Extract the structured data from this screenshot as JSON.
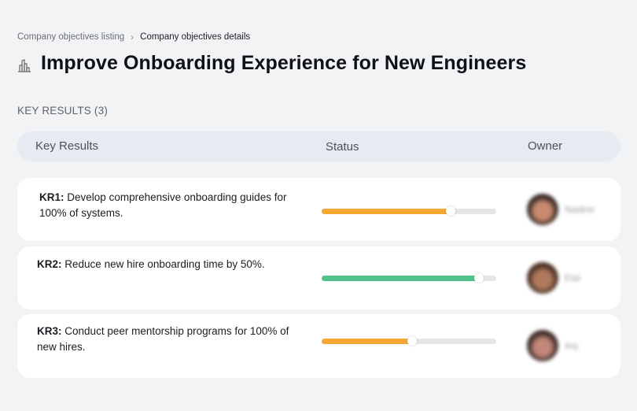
{
  "breadcrumb": {
    "items": [
      {
        "label": "Company objectives listing"
      },
      {
        "label": "Company objectives details"
      }
    ],
    "separator": "›"
  },
  "header": {
    "icon": "buildings-icon",
    "title": "Improve Onboarding Experience for New Engineers"
  },
  "key_results": {
    "section_label": "KEY RESULTS (3)",
    "columns": {
      "key_results": "Key Results",
      "status": "Status",
      "owner": "Owner"
    },
    "rows": [
      {
        "id": "KR1:",
        "text": "Develop comprehensive onboarding guides for 100% of systems.",
        "progress": 74,
        "progress_color": "#f5a733",
        "owner": {
          "name": "Nadine",
          "avatar_color_a": "#3a2a26",
          "avatar_color_b": "#c98a70"
        }
      },
      {
        "id": "KR2:",
        "text": "Reduce new hire onboarding time by 50%.",
        "progress": 90,
        "progress_color": "#52c28a",
        "owner": {
          "name": "Elai",
          "avatar_color_a": "#4a3025",
          "avatar_color_b": "#b07a5e"
        }
      },
      {
        "id": "KR3:",
        "text": "Conduct peer mentorship programs for 100% of new hires.",
        "progress": 52,
        "progress_color": "#f5a733",
        "owner": {
          "name": "Inq",
          "avatar_color_a": "#3d2b28",
          "avatar_color_b": "#c2867a"
        }
      }
    ]
  },
  "colors": {
    "background": "#f2f3f5",
    "card": "#ffffff",
    "table_header": "#e6eaf1",
    "track": "#e6e6e6",
    "orange": "#f5a733",
    "green": "#52c28a"
  }
}
